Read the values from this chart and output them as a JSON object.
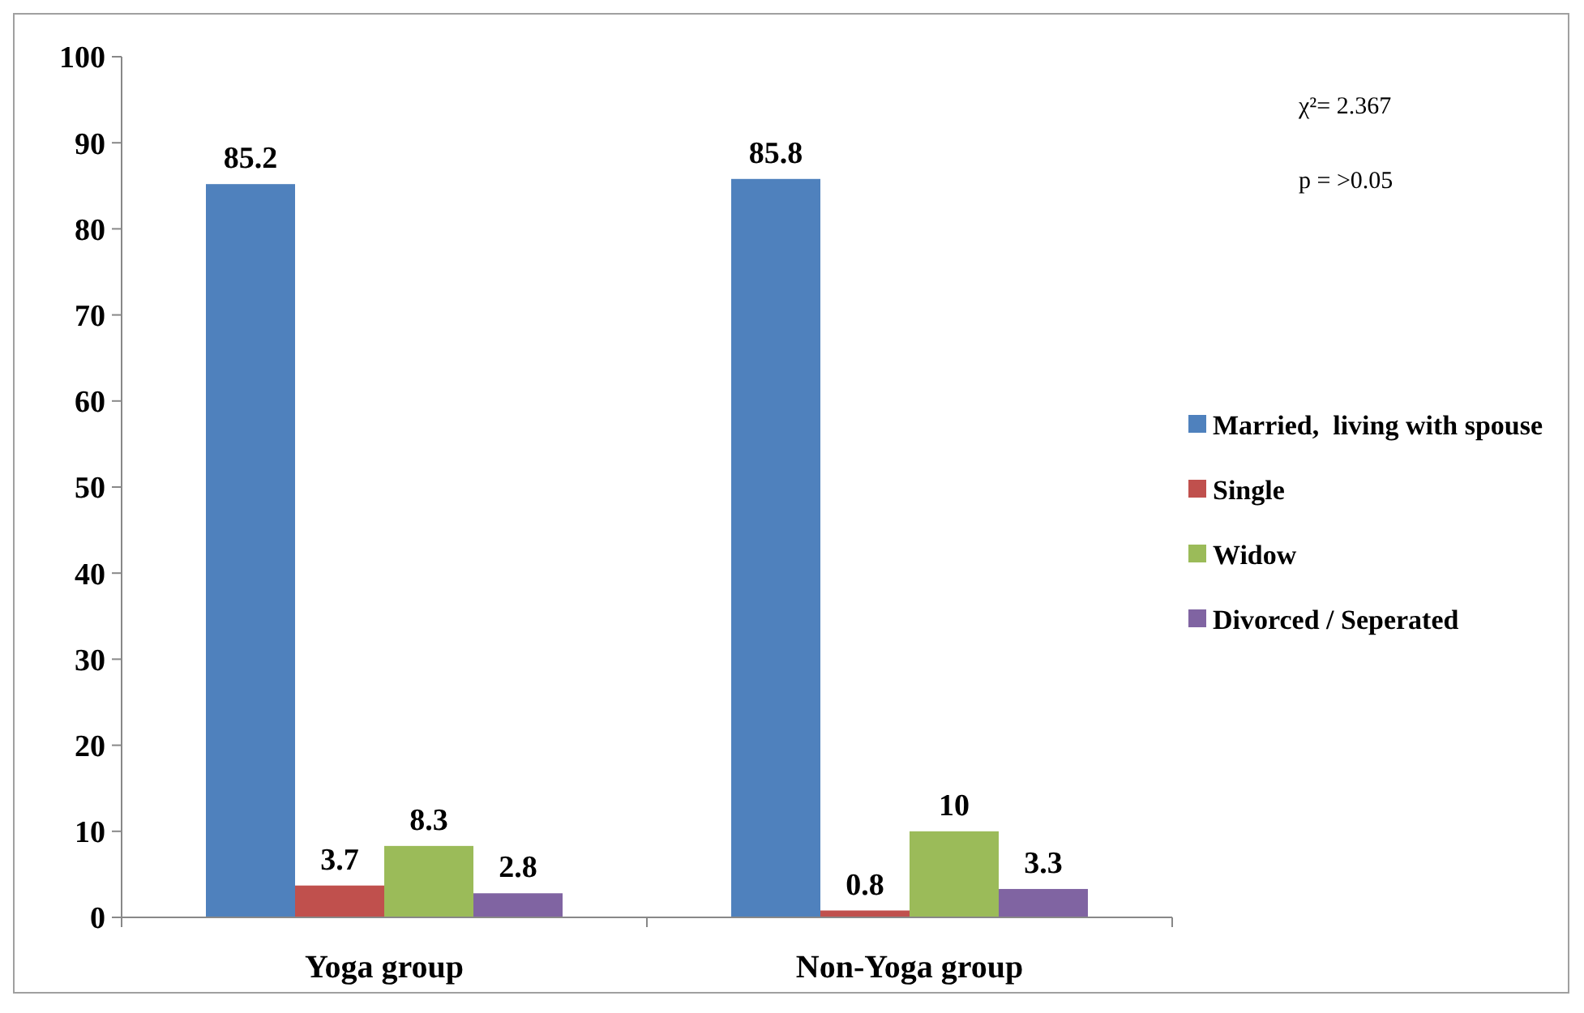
{
  "chart_data": {
    "type": "bar",
    "categories": [
      "Yoga group",
      "Non-Yoga group"
    ],
    "series": [
      {
        "name": "Married,  living with spouse",
        "color": "#4f81bd",
        "values": [
          85.2,
          85.8
        ]
      },
      {
        "name": "Single",
        "color": "#c0504d",
        "values": [
          3.7,
          0.8
        ]
      },
      {
        "name": "Widow",
        "color": "#9bbb59",
        "values": [
          8.3,
          10
        ]
      },
      {
        "name": "Divorced / Seperated",
        "color": "#8064a2",
        "values": [
          2.8,
          3.3
        ]
      }
    ],
    "ylim": [
      0,
      100
    ],
    "yticks": [
      0,
      10,
      20,
      30,
      40,
      50,
      60,
      70,
      80,
      90,
      100
    ],
    "grid": false,
    "legend": "right",
    "data_labels": true,
    "annotations": [
      "χ²= 2.367",
      "p = >0.05"
    ]
  }
}
